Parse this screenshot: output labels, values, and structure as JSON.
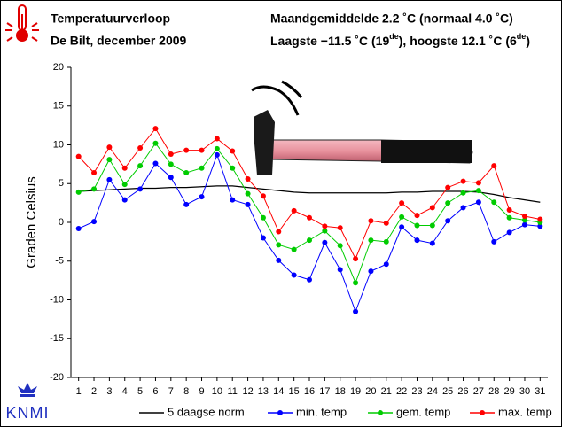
{
  "header": {
    "title": "Temperatuurverloop",
    "subtitle": "De Bilt, december 2009",
    "stats_line1": "Maandgemiddelde 2.2 ˚C (normaal 4.0 ˚C)",
    "stats_line2": [
      "Laagste −11.5 ˚C (19",
      "de",
      "), hoogste 12.1 ˚C (6",
      "de",
      ")"
    ],
    "logo": "KNMI"
  },
  "chart_data": {
    "type": "line",
    "ylabel": "Graden Celsius",
    "categories": [
      "1",
      "2",
      "3",
      "4",
      "5",
      "6",
      "7",
      "8",
      "9",
      "10",
      "11",
      "12",
      "13",
      "14",
      "15",
      "16",
      "17",
      "18",
      "19",
      "20",
      "21",
      "22",
      "23",
      "24",
      "25",
      "26",
      "27",
      "28",
      "29",
      "30",
      "31"
    ],
    "ylim": [
      -20,
      20
    ],
    "yticks": [
      -20,
      -15,
      -10,
      -5,
      0,
      5,
      10,
      15,
      20
    ],
    "series": [
      {
        "name": "5 daagse norm",
        "color": "#000000",
        "markers": false,
        "values": [
          4.0,
          4.1,
          4.2,
          4.3,
          4.4,
          4.4,
          4.5,
          4.5,
          4.6,
          4.7,
          4.7,
          4.5,
          4.3,
          4.1,
          3.9,
          3.8,
          3.8,
          3.8,
          3.8,
          3.8,
          3.8,
          3.9,
          3.9,
          4.0,
          4.0,
          4.0,
          3.9,
          3.6,
          3.2,
          2.9,
          2.6
        ]
      },
      {
        "name": "min. temp",
        "color": "#0000ff",
        "markers": true,
        "values": [
          -0.8,
          0.1,
          5.5,
          2.9,
          4.3,
          7.6,
          5.8,
          2.3,
          3.3,
          8.7,
          2.9,
          2.3,
          -2.0,
          -4.9,
          -6.8,
          -7.4,
          -2.6,
          -6.1,
          -11.5,
          -6.3,
          -5.4,
          -0.6,
          -2.3,
          -2.7,
          0.2,
          1.9,
          2.6,
          -2.5,
          -1.3,
          -0.3,
          -0.5
        ]
      },
      {
        "name": "gem. temp",
        "color": "#00cc00",
        "markers": true,
        "values": [
          3.9,
          4.3,
          8.1,
          4.9,
          7.3,
          10.2,
          7.5,
          6.4,
          7.0,
          9.5,
          7.0,
          3.7,
          0.6,
          -2.9,
          -3.5,
          -2.3,
          -1.1,
          -3.0,
          -7.8,
          -2.3,
          -2.5,
          0.7,
          -0.4,
          -0.4,
          2.5,
          3.8,
          4.1,
          2.6,
          0.6,
          0.3,
          0.0
        ]
      },
      {
        "name": "max. temp",
        "color": "#ff0000",
        "markers": true,
        "values": [
          8.5,
          6.4,
          9.7,
          7.0,
          9.6,
          12.1,
          8.8,
          9.3,
          9.3,
          10.8,
          9.2,
          5.6,
          3.4,
          -1.2,
          1.5,
          0.6,
          -0.5,
          -0.7,
          -4.7,
          0.2,
          -0.1,
          2.5,
          0.9,
          1.9,
          4.5,
          5.3,
          5.1,
          7.3,
          1.6,
          0.8,
          0.4
        ]
      }
    ]
  }
}
